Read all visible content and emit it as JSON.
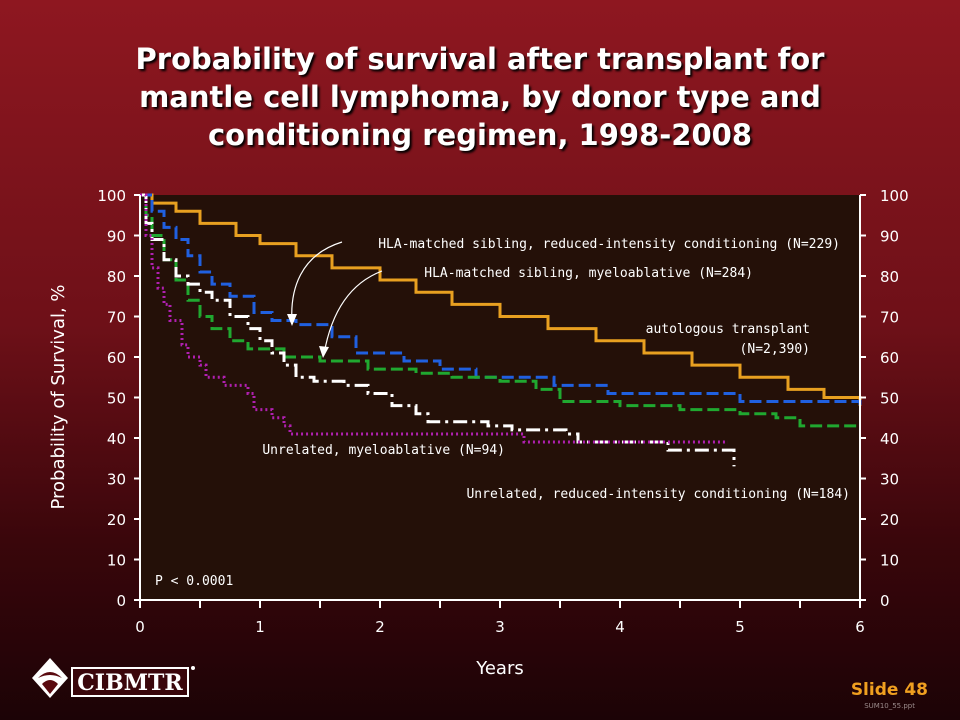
{
  "slide": {
    "title_lines": [
      "Probability of survival after transplant for",
      "mantle cell lymphoma, by donor type and",
      "conditioning regimen, 1998-2008"
    ],
    "number": "Slide 48",
    "file_name": "SUM10_55.ppt",
    "logo_text": "CIBMTR"
  },
  "colors": {
    "plot_bg": "#241008",
    "axis": "#ffffff",
    "auto": "#e8a020",
    "sib_ric": "#2060e0",
    "sib_mac": "#20a830",
    "unrel_ric": "#ffffff",
    "unrel_mac": "#b020b0"
  },
  "chart_data": {
    "type": "line",
    "step": true,
    "xlabel": "Years",
    "ylabel": "Probability of Survival, %",
    "xlim": [
      0,
      6
    ],
    "ylim": [
      0,
      100
    ],
    "x_ticks": [
      "0",
      "1",
      "2",
      "3",
      "4",
      "5",
      "6"
    ],
    "y_ticks": [
      "0",
      "10",
      "20",
      "30",
      "40",
      "50",
      "60",
      "70",
      "80",
      "90",
      "100"
    ],
    "annotation": "P < 0.0001",
    "series": [
      {
        "key": "auto",
        "style": "solid",
        "name": "autologous transplant (N=2,390)",
        "label_lines": [
          "autologous transplant",
          "(N=2,390)"
        ],
        "points": [
          [
            0,
            100
          ],
          [
            0.1,
            98
          ],
          [
            0.3,
            96
          ],
          [
            0.5,
            93
          ],
          [
            0.8,
            90
          ],
          [
            1.0,
            88
          ],
          [
            1.3,
            85
          ],
          [
            1.6,
            82
          ],
          [
            2.0,
            79
          ],
          [
            2.3,
            76
          ],
          [
            2.6,
            73
          ],
          [
            3.0,
            70
          ],
          [
            3.4,
            67
          ],
          [
            3.8,
            64
          ],
          [
            4.2,
            61
          ],
          [
            4.6,
            58
          ],
          [
            5.0,
            55
          ],
          [
            5.4,
            52
          ],
          [
            5.7,
            50
          ],
          [
            6.0,
            48
          ]
        ]
      },
      {
        "key": "sib_ric",
        "style": "dash",
        "name": "HLA-matched sibling, reduced-intensity conditioning (N=229)",
        "points": [
          [
            0,
            100
          ],
          [
            0.1,
            96
          ],
          [
            0.2,
            92
          ],
          [
            0.3,
            89
          ],
          [
            0.4,
            85
          ],
          [
            0.5,
            81
          ],
          [
            0.6,
            78
          ],
          [
            0.75,
            75
          ],
          [
            0.95,
            71
          ],
          [
            1.1,
            69
          ],
          [
            1.3,
            68
          ],
          [
            1.6,
            65
          ],
          [
            1.8,
            61
          ],
          [
            2.2,
            59
          ],
          [
            2.5,
            57
          ],
          [
            2.8,
            55
          ],
          [
            3.2,
            55
          ],
          [
            3.45,
            53
          ],
          [
            3.8,
            53
          ],
          [
            3.9,
            51
          ],
          [
            4.4,
            51
          ],
          [
            5.0,
            49
          ],
          [
            6.0,
            48
          ]
        ]
      },
      {
        "key": "sib_mac",
        "style": "dash",
        "name": "HLA-matched sibling, myeloablative (N=284)",
        "points": [
          [
            0,
            100
          ],
          [
            0.05,
            95
          ],
          [
            0.1,
            90
          ],
          [
            0.2,
            84
          ],
          [
            0.3,
            79
          ],
          [
            0.4,
            74
          ],
          [
            0.5,
            70
          ],
          [
            0.6,
            67
          ],
          [
            0.75,
            64
          ],
          [
            0.9,
            62
          ],
          [
            1.2,
            60
          ],
          [
            1.5,
            59
          ],
          [
            1.9,
            57
          ],
          [
            2.3,
            56
          ],
          [
            2.6,
            55
          ],
          [
            3.0,
            54
          ],
          [
            3.3,
            52
          ],
          [
            3.5,
            49
          ],
          [
            4.0,
            48
          ],
          [
            4.5,
            47
          ],
          [
            5.0,
            46
          ],
          [
            5.3,
            45
          ],
          [
            5.5,
            43
          ],
          [
            6.0,
            43
          ]
        ]
      },
      {
        "key": "unrel_ric",
        "style": "dashdot",
        "name": "Unrelated, reduced-intensity conditioning (N=184)",
        "points": [
          [
            0,
            100
          ],
          [
            0.05,
            93
          ],
          [
            0.1,
            89
          ],
          [
            0.2,
            84
          ],
          [
            0.3,
            80
          ],
          [
            0.4,
            78
          ],
          [
            0.5,
            76
          ],
          [
            0.6,
            74
          ],
          [
            0.75,
            70
          ],
          [
            0.9,
            67
          ],
          [
            1.0,
            64
          ],
          [
            1.1,
            61
          ],
          [
            1.2,
            58
          ],
          [
            1.3,
            55
          ],
          [
            1.45,
            54
          ],
          [
            1.7,
            53
          ],
          [
            1.9,
            51
          ],
          [
            2.1,
            48
          ],
          [
            2.3,
            46
          ],
          [
            2.4,
            44
          ],
          [
            2.6,
            44
          ],
          [
            2.9,
            43
          ],
          [
            3.1,
            42
          ],
          [
            3.55,
            41
          ],
          [
            3.65,
            39
          ],
          [
            4.3,
            39
          ],
          [
            4.4,
            37
          ],
          [
            4.6,
            37
          ],
          [
            4.8,
            37
          ],
          [
            4.95,
            33
          ]
        ]
      },
      {
        "key": "unrel_mac",
        "style": "dot",
        "name": "Unrelated, myeloablative (N=94)",
        "points": [
          [
            0,
            100
          ],
          [
            0.05,
            90
          ],
          [
            0.1,
            82
          ],
          [
            0.15,
            77
          ],
          [
            0.2,
            73
          ],
          [
            0.25,
            69
          ],
          [
            0.35,
            63
          ],
          [
            0.4,
            60
          ],
          [
            0.5,
            58
          ],
          [
            0.55,
            55
          ],
          [
            0.7,
            53
          ],
          [
            0.9,
            51
          ],
          [
            0.95,
            47
          ],
          [
            1.1,
            45
          ],
          [
            1.2,
            43
          ],
          [
            1.25,
            41
          ],
          [
            3.1,
            41
          ],
          [
            3.2,
            39
          ],
          [
            4.9,
            39
          ]
        ]
      }
    ],
    "labels": [
      {
        "series": "sib_ric",
        "text": "HLA-matched sibling, reduced-intensity conditioning (N=229)"
      },
      {
        "series": "sib_mac",
        "text": "HLA-matched sibling, myeloablative (N=284)"
      },
      {
        "series": "unrel_mac",
        "text": "Unrelated, myeloablative (N=94)"
      },
      {
        "series": "unrel_ric",
        "text": "Unrelated, reduced-intensity conditioning (N=184)"
      }
    ]
  }
}
